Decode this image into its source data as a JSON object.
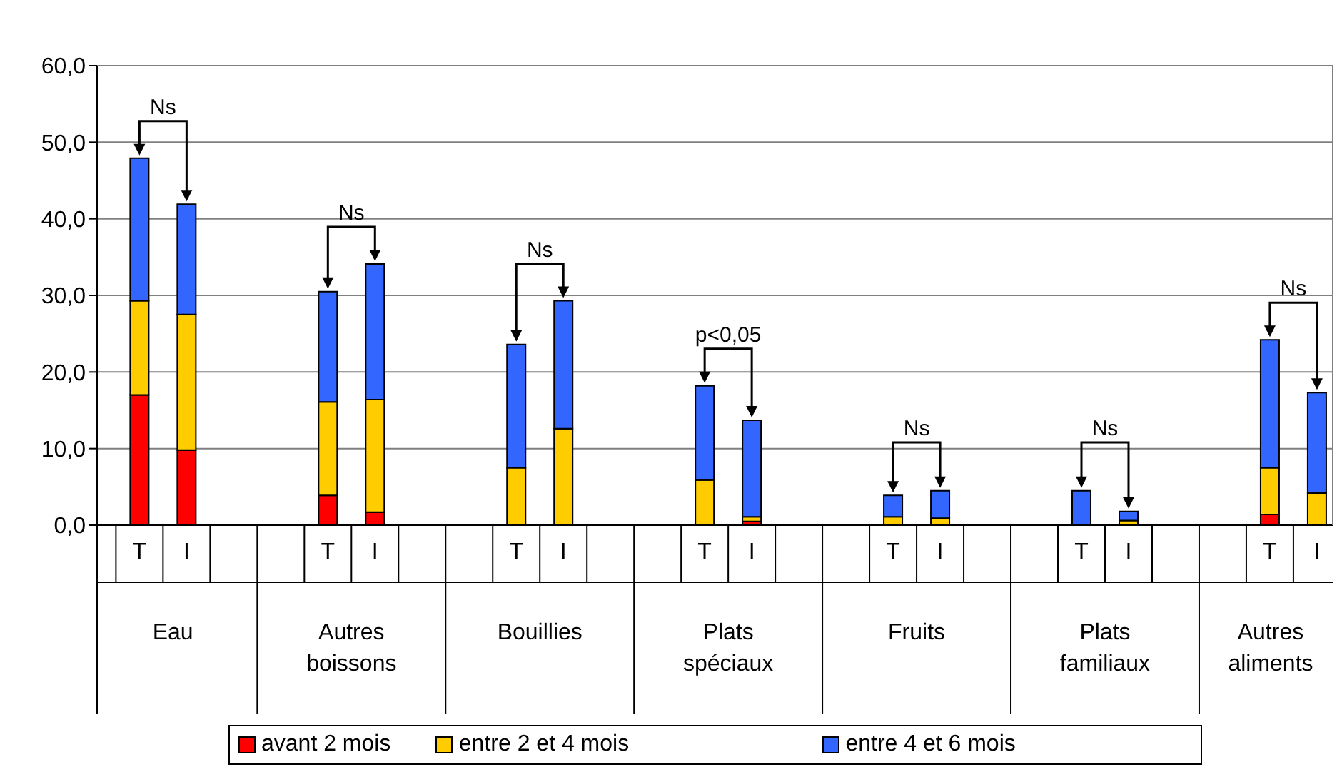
{
  "chart_data": {
    "type": "bar",
    "stacked": true,
    "categories": [
      "T",
      "I",
      "T",
      "I",
      "T",
      "I",
      "T",
      "I",
      "T",
      "I",
      "T",
      "I",
      "T",
      "I"
    ],
    "series": [
      {
        "name": "avant 2 mois",
        "color": "#ff0000",
        "values": [
          17.0,
          9.8,
          3.9,
          1.7,
          0,
          0,
          0,
          0.5,
          0,
          0,
          0,
          0,
          1.4,
          0
        ]
      },
      {
        "name": "entre 2 et 4 mois",
        "color": "#ffcc00",
        "values": [
          12.3,
          17.7,
          12.2,
          14.7,
          7.5,
          12.6,
          5.9,
          0.6,
          1.1,
          0.9,
          0,
          0.6,
          6.1,
          4.2
        ]
      },
      {
        "name": "entre 4 et 6 mois",
        "color": "#3366ff",
        "values": [
          18.6,
          14.4,
          14.4,
          17.7,
          16.1,
          16.7,
          12.3,
          12.6,
          2.8,
          3.6,
          4.5,
          1.2,
          16.7,
          13.1
        ]
      }
    ],
    "ylim": [
      0,
      60
    ],
    "yticks": [
      {
        "value": 0,
        "label": "0,0"
      },
      {
        "value": 10,
        "label": "10,0"
      },
      {
        "value": 20,
        "label": "20,0"
      },
      {
        "value": 30,
        "label": "30,0"
      },
      {
        "value": 40,
        "label": "40,0"
      },
      {
        "value": 50,
        "label": "50,0"
      },
      {
        "value": 60,
        "label": "60,0"
      }
    ],
    "grid": "y",
    "legend": "bottom",
    "annotations": [
      "Ns",
      "Ns",
      "Ns",
      "p<0,05",
      "Ns",
      "Ns",
      "Ns",
      "Eau",
      "Autres boissons",
      "Bouillies",
      "Plats spéciaux",
      "Fruits",
      "Plats familiaux",
      "Autres aliments"
    ]
  }
}
